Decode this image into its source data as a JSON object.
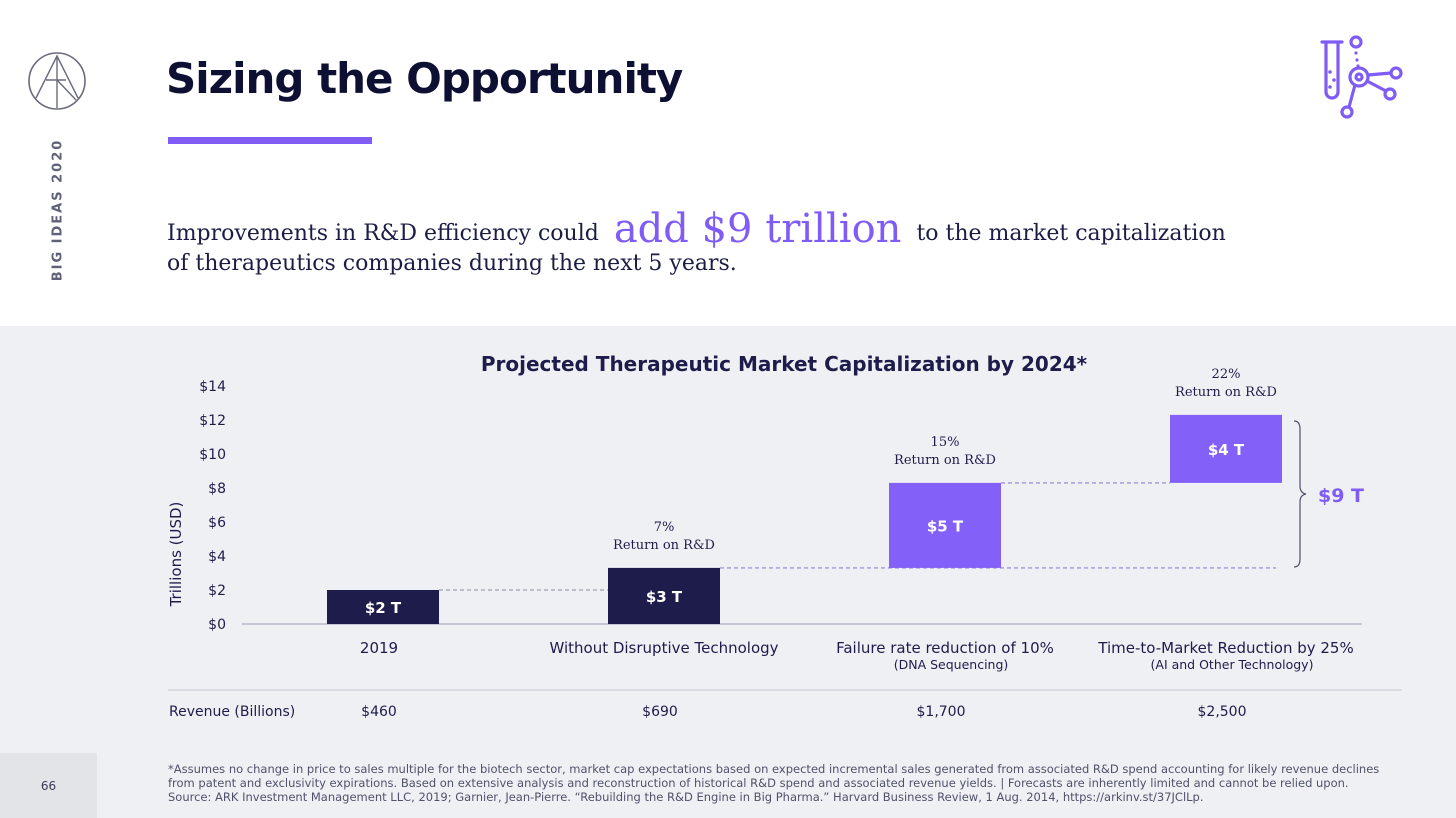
{
  "sidebar": {
    "brand_icon": "ark-logo-icon",
    "label": "BIG IDEAS 2020",
    "page_number": "66"
  },
  "header": {
    "title": "Sizing the Opportunity",
    "icon": "test-tube-molecule-icon",
    "accent": "#7f5cf5"
  },
  "headline": {
    "before": "Improvements in R&D efficiency could",
    "highlight": "add $9 trillion",
    "after": "to the market capitalization of therapeutics companies during the next 5 years."
  },
  "chart_data": {
    "type": "bar",
    "subtype": "waterfall",
    "title": "Projected Therapeutic Market Capitalization by 2024*",
    "ylabel": "Trillions (USD)",
    "ylim": [
      0,
      14
    ],
    "yticks": [
      "$0",
      "$2",
      "$4",
      "$6",
      "$8",
      "$10",
      "$12",
      "$14"
    ],
    "categories": [
      {
        "label": "2019",
        "sublabel": ""
      },
      {
        "label": "Without Disruptive Technology",
        "sublabel": ""
      },
      {
        "label": "Failure rate reduction of 10%",
        "sublabel": "(DNA Sequencing)"
      },
      {
        "label": "Time-to-Market Reduction by 25%",
        "sublabel": "(AI and Other Technology)"
      }
    ],
    "bars": [
      {
        "base": 0,
        "value": 2,
        "label": "$2 T",
        "color": "#1e1c4a"
      },
      {
        "base": 0,
        "value": 3.3,
        "label": "$3 T",
        "color": "#1e1c4a"
      },
      {
        "base": 3.3,
        "value": 5,
        "label": "$5 T",
        "color": "#8360f7"
      },
      {
        "base": 8.3,
        "value": 4,
        "label": "$4 T",
        "color": "#8360f7"
      }
    ],
    "return_labels": [
      null,
      {
        "pct": "7%",
        "text": "Return on R&D"
      },
      {
        "pct": "15%",
        "text": "Return on R&D"
      },
      {
        "pct": "22%",
        "text": "Return on R&D"
      }
    ],
    "bracket_label": "$9 T",
    "revenue_row": {
      "label": "Revenue (Billions)",
      "values": [
        "$460",
        "$690",
        "$1,700",
        "$2,500"
      ]
    }
  },
  "footnote": {
    "line1": "*Assumes no change in price to sales multiple for the biotech sector, market cap expectations based on expected incremental sales generated from associated R&D spend accounting for likely revenue declines from patent and exclusivity expirations. Based on extensive analysis and reconstruction of historical R&D spend and associated revenue yields.  |  Forecasts are inherently limited and cannot be relied upon.",
    "line2": "Source: ARK Investment Management LLC, 2019; Garnier, Jean-Pierre. “Rebuilding the R&D Engine in Big Pharma.” Harvard Business Review, 1 Aug. 2014, https://arkinv.st/37JClLp."
  }
}
